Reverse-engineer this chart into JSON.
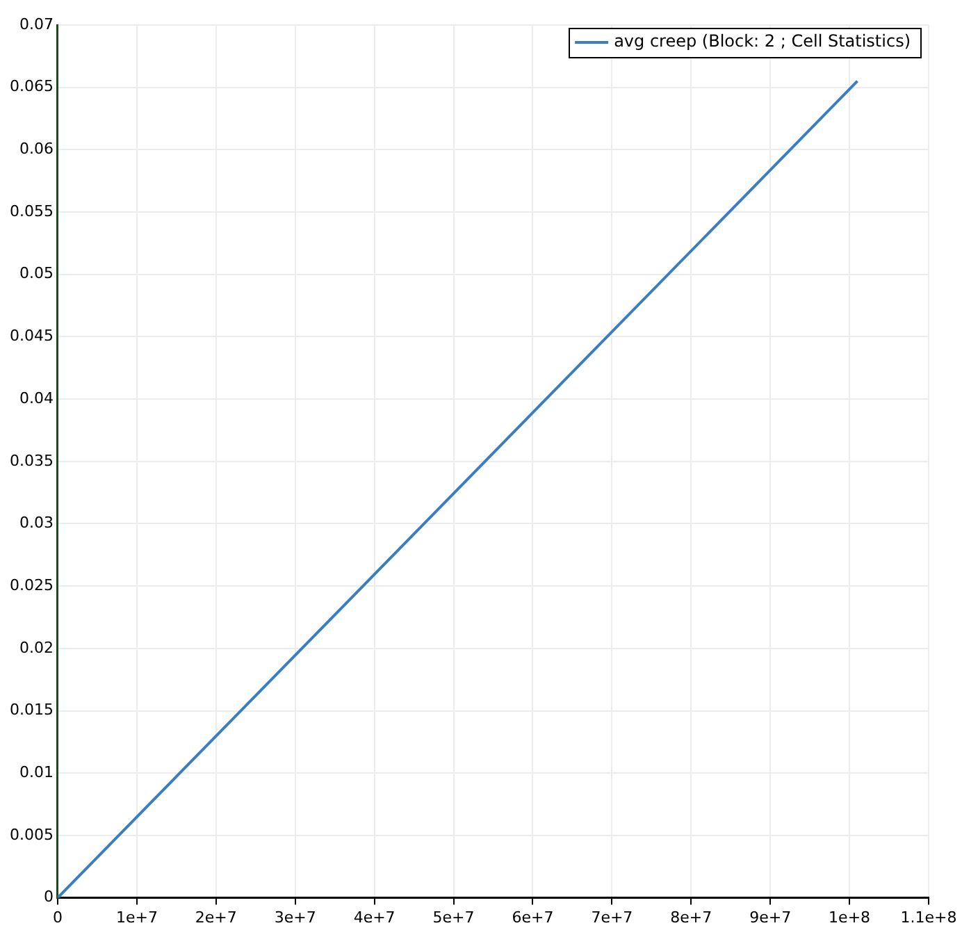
{
  "chart_data": {
    "type": "line",
    "series": [
      {
        "name": "avg creep (Block: 2 ; Cell Statistics)",
        "color": "#3b7ec0",
        "x": [
          0,
          101000000
        ],
        "values": [
          0,
          0.0655
        ]
      }
    ],
    "xlim": [
      0,
      110000000
    ],
    "xticks": [
      0,
      {
        "value": 10000000,
        "label": "1e+7"
      },
      {
        "value": 20000000,
        "label": "2e+7"
      },
      {
        "value": 30000000,
        "label": "3e+7"
      },
      {
        "value": 40000000,
        "label": "4e+7"
      },
      {
        "value": 50000000,
        "label": "5e+7"
      },
      {
        "value": 60000000,
        "label": "6e+7"
      },
      {
        "value": 70000000,
        "label": "7e+7"
      },
      {
        "value": 80000000,
        "label": "8e+7"
      },
      {
        "value": 90000000,
        "label": "9e+7"
      },
      {
        "value": 100000000,
        "label": "1e+8"
      },
      {
        "value": 110000000,
        "label": "1.1e+8"
      }
    ],
    "ylim": [
      0,
      0.07
    ],
    "yticks": [
      0,
      0.005,
      0.01,
      0.015,
      0.02,
      0.025,
      0.03,
      0.035,
      0.04,
      0.045,
      0.05,
      0.055,
      0.06,
      0.065,
      0.07
    ],
    "grid": true,
    "legend": "top right",
    "marker": "none",
    "line_style": "solid"
  }
}
